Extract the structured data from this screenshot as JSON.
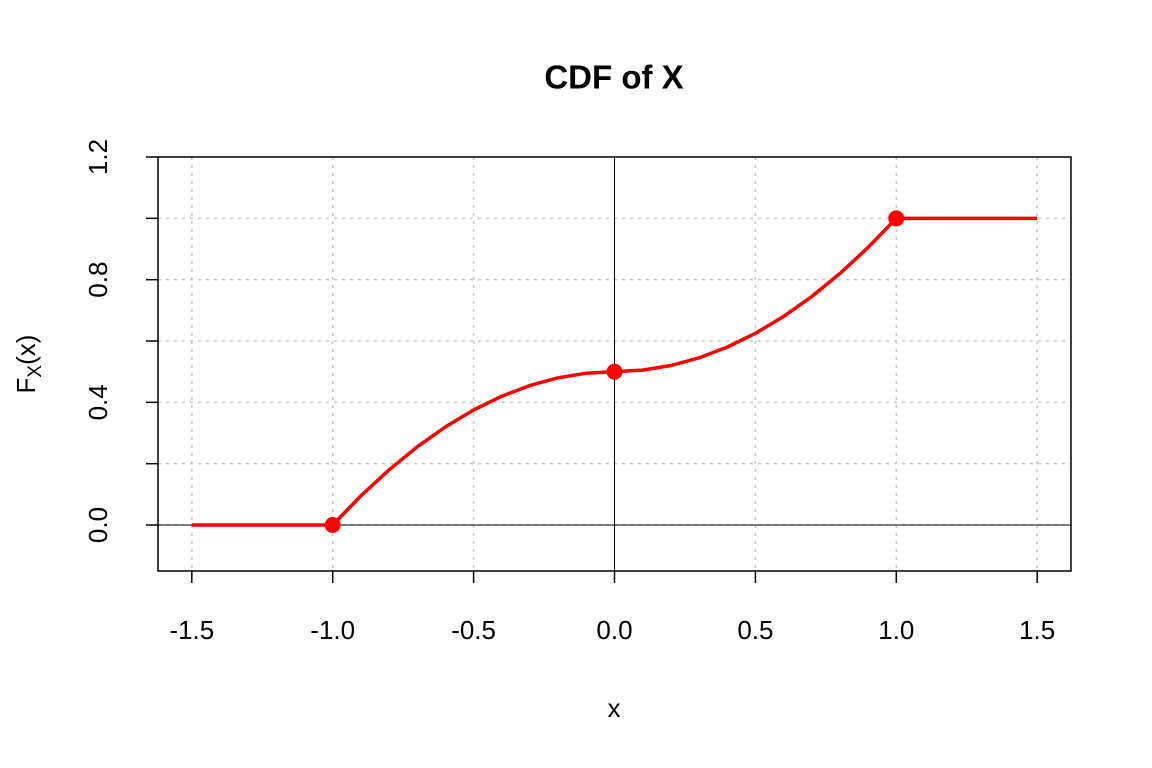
{
  "chart_data": {
    "type": "line",
    "title": "CDF of X",
    "xlabel": "x",
    "ylabel": [
      "F",
      "X",
      "(x)"
    ],
    "xlim": [
      -1.62,
      1.62
    ],
    "ylim": [
      -0.15,
      1.2
    ],
    "xticks": [
      -1.5,
      {
        "value": -1,
        "label": "-1.0"
      },
      -0.5,
      {
        "value": 0,
        "label": "0.0"
      },
      0.5,
      {
        "value": 1,
        "label": "1.0"
      },
      1.5
    ],
    "yticks": [
      {
        "value": 0,
        "label": "0.0"
      },
      {
        "value": 0.2
      },
      {
        "value": 0.4,
        "label": "0.4"
      },
      {
        "value": 0.6
      },
      {
        "value": 0.8,
        "label": "0.8"
      },
      {
        "value": 1
      },
      {
        "value": 1.2,
        "label": "1.2"
      }
    ],
    "grid": true,
    "reference_lines": {
      "h": 0,
      "v": 0
    },
    "series": [
      {
        "color": "#ff0000",
        "x": [
          -1.5,
          -1.4,
          -1.3,
          -1.2,
          -1.1,
          -1,
          -0.9,
          -0.8,
          -0.7,
          -0.6,
          -0.5,
          -0.4,
          -0.3,
          -0.2,
          -0.1,
          0,
          0.1,
          0.2,
          0.3,
          0.4,
          0.5,
          0.6,
          0.7,
          0.8,
          0.9,
          1,
          1.1,
          1.2,
          1.3,
          1.4,
          1.5
        ],
        "values": [
          0,
          0,
          0,
          0,
          0,
          0,
          0.095,
          0.18,
          0.255,
          0.32,
          0.375,
          0.42,
          0.455,
          0.48,
          0.495,
          0.5,
          0.505,
          0.52,
          0.545,
          0.58,
          0.625,
          0.68,
          0.745,
          0.82,
          0.905,
          1,
          1,
          1,
          1,
          1,
          1
        ]
      }
    ],
    "points": {
      "color": "#ff0000",
      "x": [
        -1,
        0,
        1
      ],
      "values": [
        0,
        0.5,
        1
      ]
    }
  }
}
